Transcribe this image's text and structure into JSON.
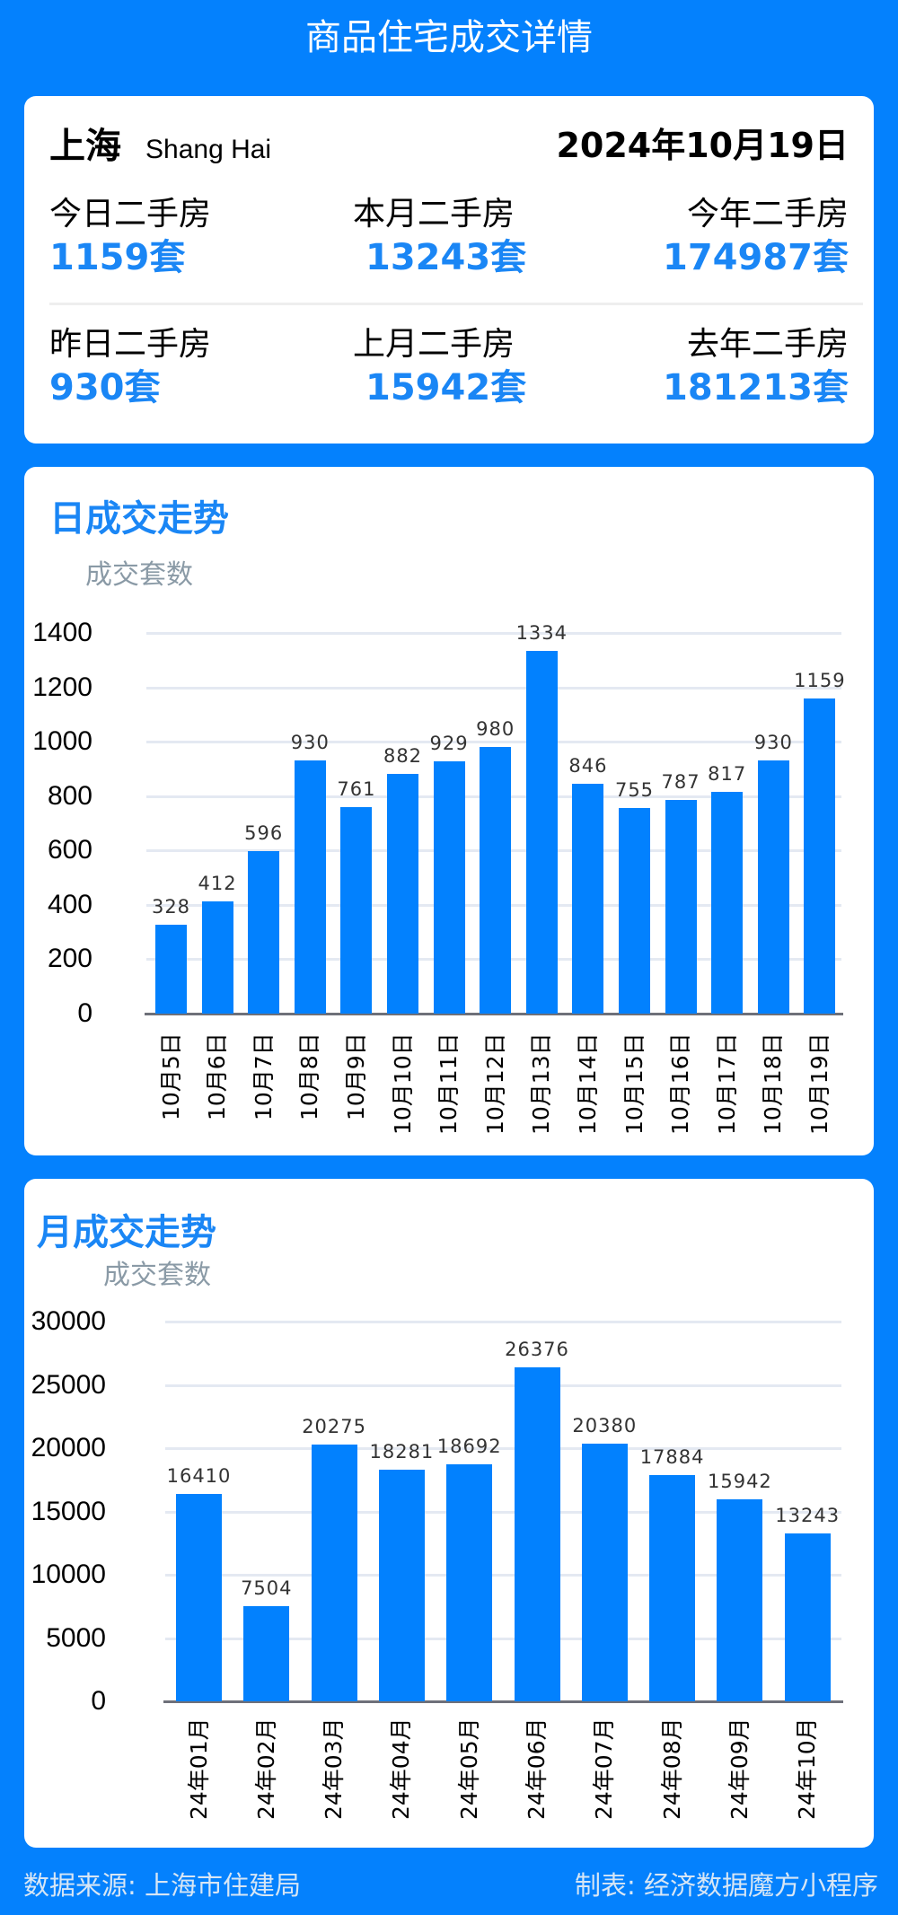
{
  "header": {
    "title": "商品住宅成交详情"
  },
  "summary": {
    "city": "上海",
    "city_en": "Shang Hai",
    "date": "2024年10月19日",
    "stats": [
      {
        "label": "今日二手房",
        "value": "1159套"
      },
      {
        "label": "本月二手房",
        "value": "13243套"
      },
      {
        "label": "今年二手房",
        "value": "174987套"
      },
      {
        "label": "昨日二手房",
        "value": "930套"
      },
      {
        "label": "上月二手房",
        "value": "15942套"
      },
      {
        "label": "去年二手房",
        "value": "181213套"
      }
    ]
  },
  "colors": {
    "background": "#0481fd",
    "bar": "#0281fe",
    "accent_text": "#1a86f5",
    "grid": "#e4e9f2",
    "axis": "#6e7079",
    "y_title": "#8a9aa6"
  },
  "chart_data": [
    {
      "type": "bar",
      "title": "日成交走势",
      "ylabel": "成交套数",
      "xlabel": "",
      "categories": [
        "10月5日",
        "10月6日",
        "10月7日",
        "10月8日",
        "10月9日",
        "10月10日",
        "10月11日",
        "10月12日",
        "10月13日",
        "10月14日",
        "10月15日",
        "10月16日",
        "10月17日",
        "10月18日",
        "10月19日"
      ],
      "values": [
        328,
        412,
        596,
        930,
        761,
        882,
        929,
        980,
        1334,
        846,
        755,
        787,
        817,
        930,
        1159
      ],
      "yticks": [
        0,
        200,
        400,
        600,
        800,
        1000,
        1200,
        1400
      ],
      "ylim": [
        0,
        1400
      ],
      "grid": true,
      "data_labels": true,
      "legend": "none"
    },
    {
      "type": "bar",
      "title": "月成交走势",
      "ylabel": "成交套数",
      "xlabel": "",
      "categories": [
        "24年01月",
        "24年02月",
        "24年03月",
        "24年04月",
        "24年05月",
        "24年06月",
        "24年07月",
        "24年08月",
        "24年09月",
        "24年10月"
      ],
      "values": [
        16410,
        7504,
        20275,
        18281,
        18692,
        26376,
        20380,
        17884,
        15942,
        13243
      ],
      "yticks": [
        0,
        5000,
        10000,
        15000,
        20000,
        25000,
        30000
      ],
      "ylim": [
        0,
        30000
      ],
      "grid": true,
      "data_labels": true,
      "legend": "none"
    }
  ],
  "footer": {
    "source": "数据来源: 上海市住建局",
    "maker": "制表: 经济数据魔方小程序"
  }
}
